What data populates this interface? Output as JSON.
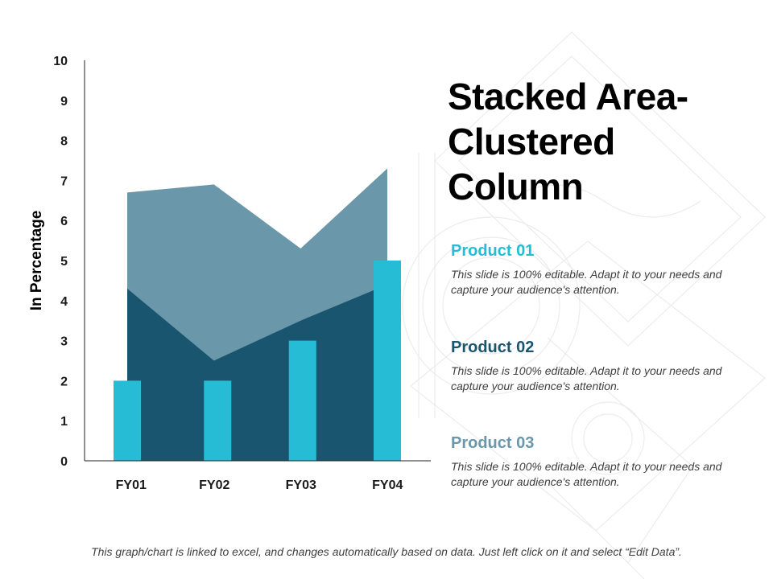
{
  "colors": {
    "area_back": "#6b97aa",
    "area_front": "#1a5570",
    "column": "#27bcd6",
    "axis": "#222222",
    "product_01": "#27bcd6",
    "product_02": "#1a5570",
    "product_03": "#6b97aa"
  },
  "title": "Stacked Area-\nClustered\nColumn",
  "products": [
    {
      "name": "Product 01",
      "description": "This slide is 100% editable. Adapt it to your needs and capture your audience's attention."
    },
    {
      "name": "Product 02",
      "description": "This slide is 100% editable. Adapt it to your needs and capture your audience's attention."
    },
    {
      "name": "Product 03",
      "description": "This slide is 100% editable. Adapt it to your needs and capture your audience's attention."
    }
  ],
  "footer": "This graph/chart is linked to excel, and changes automatically based on data. Just left click on it and select “Edit Data”.",
  "chart_data": {
    "type": "area+bar",
    "categories": [
      "FY01",
      "FY02",
      "FY03",
      "FY04"
    ],
    "ylabel": "In Percentage",
    "xlabel": "",
    "ylim": [
      0,
      10
    ],
    "yticks": [
      0,
      1,
      2,
      3,
      4,
      5,
      6,
      7,
      8,
      9,
      10
    ],
    "grid": false,
    "series": [
      {
        "kind": "area",
        "values": [
          4.3,
          2.5,
          3.5,
          4.4
        ]
      },
      {
        "kind": "area-stacked",
        "values": [
          2.4,
          4.4,
          1.8,
          2.9
        ]
      },
      {
        "kind": "column",
        "values": [
          2,
          2,
          3,
          5
        ]
      }
    ]
  }
}
